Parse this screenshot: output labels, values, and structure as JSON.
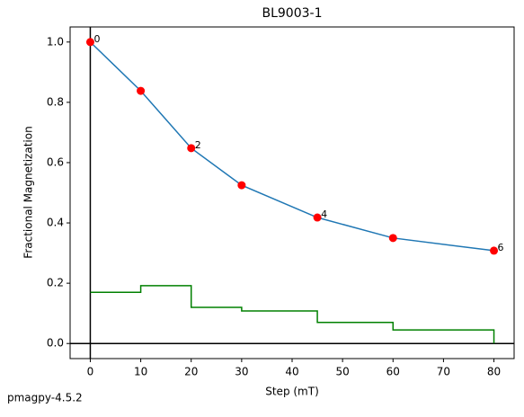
{
  "chart_data": {
    "type": "line",
    "title": "BL9003-1",
    "xlabel": "Step (mT)",
    "ylabel": "Fractional Magnetization",
    "footer": "pmagpy-4.5.2",
    "xlim": [
      -4,
      84
    ],
    "ylim": [
      -0.05,
      1.05
    ],
    "xticks": [
      0,
      10,
      20,
      30,
      40,
      50,
      60,
      70,
      80
    ],
    "yticks": [
      {
        "value": 0,
        "label": "0.0"
      },
      0.2,
      0.4,
      0.6,
      0.8,
      {
        "value": 1,
        "label": "1.0"
      }
    ],
    "zero_lines": true,
    "series": [
      {
        "style": "line-markers",
        "color": "#1f77b4",
        "marker_color": "#ff0000",
        "x": [
          0,
          10,
          20,
          30,
          45,
          60,
          80
        ],
        "values": [
          1.0,
          0.838,
          0.648,
          0.525,
          0.418,
          0.35,
          0.308
        ],
        "point_labels": [
          "0",
          null,
          "2",
          null,
          "4",
          null,
          "6"
        ]
      },
      {
        "style": "steps-post",
        "color": "#008000",
        "x": [
          0,
          10,
          20,
          30,
          45,
          60,
          80
        ],
        "values": [
          0.17,
          0.192,
          0.12,
          0.108,
          0.07,
          0.045,
          0
        ]
      }
    ]
  }
}
